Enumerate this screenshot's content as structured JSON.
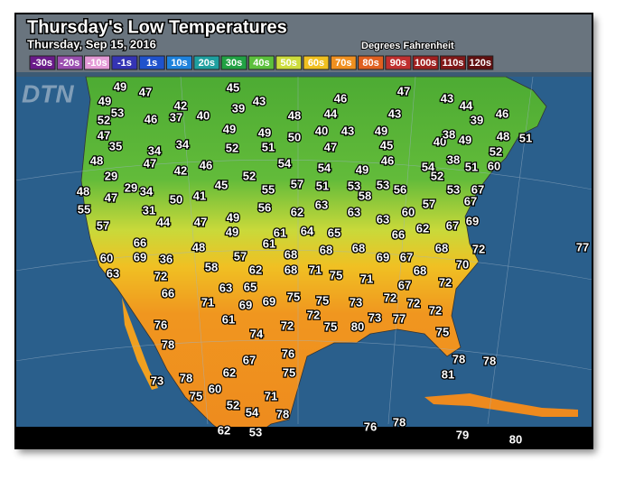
{
  "header": {
    "title": "Thursday's Low Temperatures",
    "subtitle": "Thursday, Sep 15, 2016",
    "units": "Degrees Fahrenheit",
    "logo": "DTN"
  },
  "legend": [
    {
      "label": "-30s",
      "color": "#6a1a8a"
    },
    {
      "label": "-20s",
      "color": "#9b4fb0"
    },
    {
      "label": "-10s",
      "color": "#e49ad6"
    },
    {
      "label": "-1s",
      "color": "#3434b4"
    },
    {
      "label": "1s",
      "color": "#1f52cc"
    },
    {
      "label": "10s",
      "color": "#1f82dc"
    },
    {
      "label": "20s",
      "color": "#1fa0a0"
    },
    {
      "label": "30s",
      "color": "#22a244"
    },
    {
      "label": "40s",
      "color": "#5cc03c"
    },
    {
      "label": "50s",
      "color": "#cddc3c"
    },
    {
      "label": "60s",
      "color": "#f0c020"
    },
    {
      "label": "70s",
      "color": "#f09020"
    },
    {
      "label": "80s",
      "color": "#e06020"
    },
    {
      "label": "90s",
      "color": "#c03030"
    },
    {
      "label": "100s",
      "color": "#a02020"
    },
    {
      "label": "110s",
      "color": "#801818"
    },
    {
      "label": "120s",
      "color": "#601010"
    }
  ],
  "temperatures": [
    49,
    47,
    45,
    46,
    47,
    43,
    49,
    42,
    39,
    43,
    44,
    53,
    52,
    46,
    37,
    40,
    48,
    44,
    43,
    39,
    46,
    47,
    49,
    49,
    50,
    40,
    43,
    49,
    48,
    51,
    49,
    40,
    38,
    35,
    34,
    34,
    52,
    51,
    47,
    45,
    52,
    48,
    47,
    42,
    46,
    54,
    54,
    46,
    38,
    60,
    51,
    54,
    52,
    49,
    29,
    52,
    45,
    57,
    51,
    53,
    53,
    56,
    53,
    67,
    48,
    47,
    29,
    34,
    50,
    41,
    55,
    58,
    67,
    55,
    31,
    56,
    62,
    63,
    63,
    60,
    57,
    49,
    47,
    44,
    63,
    67,
    69,
    62,
    57,
    61,
    64,
    65,
    66,
    49,
    68,
    72,
    77,
    61,
    66,
    48,
    68,
    68,
    68,
    69,
    67,
    60,
    69,
    36,
    57,
    62,
    68,
    71,
    75,
    71,
    68,
    70,
    58,
    63,
    72,
    72,
    63,
    65,
    75,
    66,
    71,
    69,
    69,
    75,
    73,
    67,
    72,
    72,
    72,
    72,
    61,
    76,
    72,
    75,
    80,
    73,
    77,
    74,
    75,
    78,
    76,
    78,
    78,
    81,
    73,
    78,
    62,
    67,
    75,
    60,
    75,
    71,
    52,
    54,
    78,
    76,
    78,
    62,
    53,
    79,
    80
  ]
}
